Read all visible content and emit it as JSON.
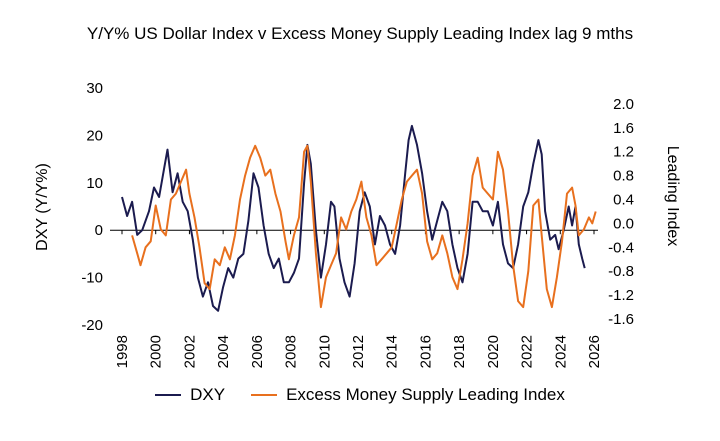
{
  "chart_data": {
    "type": "line",
    "title": "Y/Y% US Dollar Index v Excess Money Supply Leading Index lag 9 mths",
    "ylabel": "DXY (Y/Y%)",
    "y2label": "Leading Index",
    "ylim": [
      -20,
      30
    ],
    "y2lim": [
      -1.6,
      2.2
    ],
    "xlim": [
      1998,
      2026
    ],
    "x_ticks": [
      "1998",
      "2000",
      "2002",
      "2004",
      "2006",
      "2008",
      "2010",
      "2012",
      "2014",
      "2016",
      "2018",
      "2020",
      "2022",
      "2024",
      "2026"
    ],
    "y_ticks": [
      "30",
      "20",
      "10",
      "0",
      "-10",
      "-20"
    ],
    "y2_ticks": [
      "2.0",
      "1.6",
      "1.2",
      "0.8",
      "0.4",
      "0.0",
      "-0.4",
      "-0.8",
      "-1.2",
      "-1.6"
    ],
    "legend_position": "bottom",
    "grid": false,
    "series": [
      {
        "name": "DXY",
        "axis": "left",
        "color": "#1b1b4f",
        "points": [
          [
            1998.0,
            7
          ],
          [
            1998.3,
            3
          ],
          [
            1998.6,
            6
          ],
          [
            1998.9,
            -1
          ],
          [
            1999.2,
            0
          ],
          [
            1999.6,
            4
          ],
          [
            1999.9,
            9
          ],
          [
            2000.2,
            7
          ],
          [
            2000.5,
            13
          ],
          [
            2000.7,
            17
          ],
          [
            2001.0,
            8
          ],
          [
            2001.3,
            12
          ],
          [
            2001.6,
            6
          ],
          [
            2001.9,
            4
          ],
          [
            2002.2,
            -2
          ],
          [
            2002.5,
            -10
          ],
          [
            2002.8,
            -14
          ],
          [
            2003.1,
            -11
          ],
          [
            2003.4,
            -16
          ],
          [
            2003.7,
            -17
          ],
          [
            2004.0,
            -12
          ],
          [
            2004.3,
            -8
          ],
          [
            2004.6,
            -10
          ],
          [
            2004.9,
            -6
          ],
          [
            2005.2,
            -5
          ],
          [
            2005.5,
            2
          ],
          [
            2005.8,
            12
          ],
          [
            2006.1,
            9
          ],
          [
            2006.4,
            1
          ],
          [
            2006.7,
            -5
          ],
          [
            2007.0,
            -8
          ],
          [
            2007.3,
            -6
          ],
          [
            2007.6,
            -11
          ],
          [
            2007.9,
            -11
          ],
          [
            2008.2,
            -9
          ],
          [
            2008.5,
            -6
          ],
          [
            2008.8,
            10
          ],
          [
            2009.0,
            18
          ],
          [
            2009.2,
            14
          ],
          [
            2009.5,
            0
          ],
          [
            2009.8,
            -10
          ],
          [
            2010.1,
            -3
          ],
          [
            2010.4,
            6
          ],
          [
            2010.6,
            5
          ],
          [
            2010.9,
            -6
          ],
          [
            2011.2,
            -11
          ],
          [
            2011.5,
            -14
          ],
          [
            2011.8,
            -7
          ],
          [
            2012.1,
            4
          ],
          [
            2012.4,
            8
          ],
          [
            2012.7,
            5
          ],
          [
            2013.0,
            -3
          ],
          [
            2013.3,
            3
          ],
          [
            2013.6,
            1
          ],
          [
            2013.9,
            -3
          ],
          [
            2014.2,
            -5
          ],
          [
            2014.5,
            1
          ],
          [
            2014.8,
            12
          ],
          [
            2015.0,
            19
          ],
          [
            2015.2,
            22
          ],
          [
            2015.5,
            18
          ],
          [
            2015.8,
            12
          ],
          [
            2016.1,
            4
          ],
          [
            2016.4,
            -2
          ],
          [
            2016.7,
            2
          ],
          [
            2017.0,
            6
          ],
          [
            2017.3,
            4
          ],
          [
            2017.6,
            -3
          ],
          [
            2017.9,
            -8
          ],
          [
            2018.2,
            -11
          ],
          [
            2018.5,
            -5
          ],
          [
            2018.8,
            6
          ],
          [
            2019.1,
            6
          ],
          [
            2019.4,
            4
          ],
          [
            2019.7,
            4
          ],
          [
            2020.0,
            1
          ],
          [
            2020.3,
            6
          ],
          [
            2020.6,
            -3
          ],
          [
            2020.9,
            -7
          ],
          [
            2021.2,
            -8
          ],
          [
            2021.5,
            -3
          ],
          [
            2021.8,
            5
          ],
          [
            2022.1,
            8
          ],
          [
            2022.4,
            14
          ],
          [
            2022.7,
            19
          ],
          [
            2022.9,
            16
          ],
          [
            2023.1,
            4
          ],
          [
            2023.4,
            -2
          ],
          [
            2023.7,
            -1
          ],
          [
            2023.9,
            -4
          ],
          [
            2024.2,
            0
          ],
          [
            2024.5,
            5
          ],
          [
            2024.7,
            1
          ],
          [
            2024.9,
            5
          ],
          [
            2025.1,
            -3
          ],
          [
            2025.3,
            -6
          ],
          [
            2025.45,
            -8
          ]
        ]
      },
      {
        "name": "Excess Money Supply Leading Index",
        "axis": "right",
        "color": "#e8701e",
        "points": [
          [
            1998.6,
            -0.2
          ],
          [
            1998.9,
            -0.5
          ],
          [
            1999.1,
            -0.7
          ],
          [
            1999.4,
            -0.4
          ],
          [
            1999.7,
            -0.3
          ],
          [
            2000.0,
            0.3
          ],
          [
            2000.3,
            -0.1
          ],
          [
            2000.6,
            -0.2
          ],
          [
            2000.9,
            0.4
          ],
          [
            2001.2,
            0.5
          ],
          [
            2001.5,
            0.7
          ],
          [
            2001.8,
            0.9
          ],
          [
            2002.0,
            0.5
          ],
          [
            2002.3,
            0.1
          ],
          [
            2002.6,
            -0.4
          ],
          [
            2002.9,
            -1.0
          ],
          [
            2003.2,
            -1.1
          ],
          [
            2003.5,
            -0.6
          ],
          [
            2003.8,
            -0.7
          ],
          [
            2004.1,
            -0.4
          ],
          [
            2004.4,
            -0.6
          ],
          [
            2004.7,
            -0.2
          ],
          [
            2005.0,
            0.4
          ],
          [
            2005.3,
            0.8
          ],
          [
            2005.6,
            1.1
          ],
          [
            2005.9,
            1.3
          ],
          [
            2006.2,
            1.1
          ],
          [
            2006.5,
            0.8
          ],
          [
            2006.8,
            0.9
          ],
          [
            2007.1,
            0.5
          ],
          [
            2007.4,
            0.2
          ],
          [
            2007.7,
            -0.3
          ],
          [
            2007.9,
            -0.6
          ],
          [
            2008.2,
            -0.2
          ],
          [
            2008.5,
            0.1
          ],
          [
            2008.8,
            1.2
          ],
          [
            2009.0,
            1.3
          ],
          [
            2009.2,
            0.7
          ],
          [
            2009.5,
            -0.5
          ],
          [
            2009.8,
            -1.4
          ],
          [
            2010.1,
            -0.9
          ],
          [
            2010.4,
            -0.7
          ],
          [
            2010.7,
            -0.5
          ],
          [
            2011.0,
            0.1
          ],
          [
            2011.3,
            -0.1
          ],
          [
            2011.6,
            0.2
          ],
          [
            2011.9,
            0.4
          ],
          [
            2012.2,
            0.7
          ],
          [
            2012.5,
            0.1
          ],
          [
            2012.8,
            -0.2
          ],
          [
            2013.1,
            -0.7
          ],
          [
            2013.4,
            -0.6
          ],
          [
            2013.7,
            -0.5
          ],
          [
            2014.0,
            -0.4
          ],
          [
            2014.3,
            0.0
          ],
          [
            2014.6,
            0.4
          ],
          [
            2014.9,
            0.7
          ],
          [
            2015.2,
            0.8
          ],
          [
            2015.5,
            0.9
          ],
          [
            2015.8,
            0.5
          ],
          [
            2016.1,
            -0.3
          ],
          [
            2016.4,
            -0.6
          ],
          [
            2016.7,
            -0.5
          ],
          [
            2017.0,
            -0.2
          ],
          [
            2017.3,
            -0.5
          ],
          [
            2017.6,
            -0.9
          ],
          [
            2017.9,
            -1.1
          ],
          [
            2018.2,
            -0.6
          ],
          [
            2018.5,
            0.0
          ],
          [
            2018.8,
            0.8
          ],
          [
            2019.1,
            1.1
          ],
          [
            2019.4,
            0.6
          ],
          [
            2019.7,
            0.5
          ],
          [
            2020.0,
            0.4
          ],
          [
            2020.3,
            1.2
          ],
          [
            2020.6,
            0.9
          ],
          [
            2020.9,
            0.2
          ],
          [
            2021.2,
            -0.7
          ],
          [
            2021.5,
            -1.3
          ],
          [
            2021.8,
            -1.4
          ],
          [
            2022.1,
            -0.8
          ],
          [
            2022.4,
            0.3
          ],
          [
            2022.7,
            0.4
          ],
          [
            2022.9,
            -0.2
          ],
          [
            2023.2,
            -1.1
          ],
          [
            2023.5,
            -1.4
          ],
          [
            2023.8,
            -0.9
          ],
          [
            2024.1,
            -0.3
          ],
          [
            2024.4,
            0.5
          ],
          [
            2024.7,
            0.6
          ],
          [
            2024.9,
            0.3
          ],
          [
            2025.1,
            -0.2
          ],
          [
            2025.4,
            -0.1
          ],
          [
            2025.7,
            0.1
          ],
          [
            2025.9,
            0.0
          ],
          [
            2026.1,
            0.2
          ]
        ]
      }
    ]
  }
}
